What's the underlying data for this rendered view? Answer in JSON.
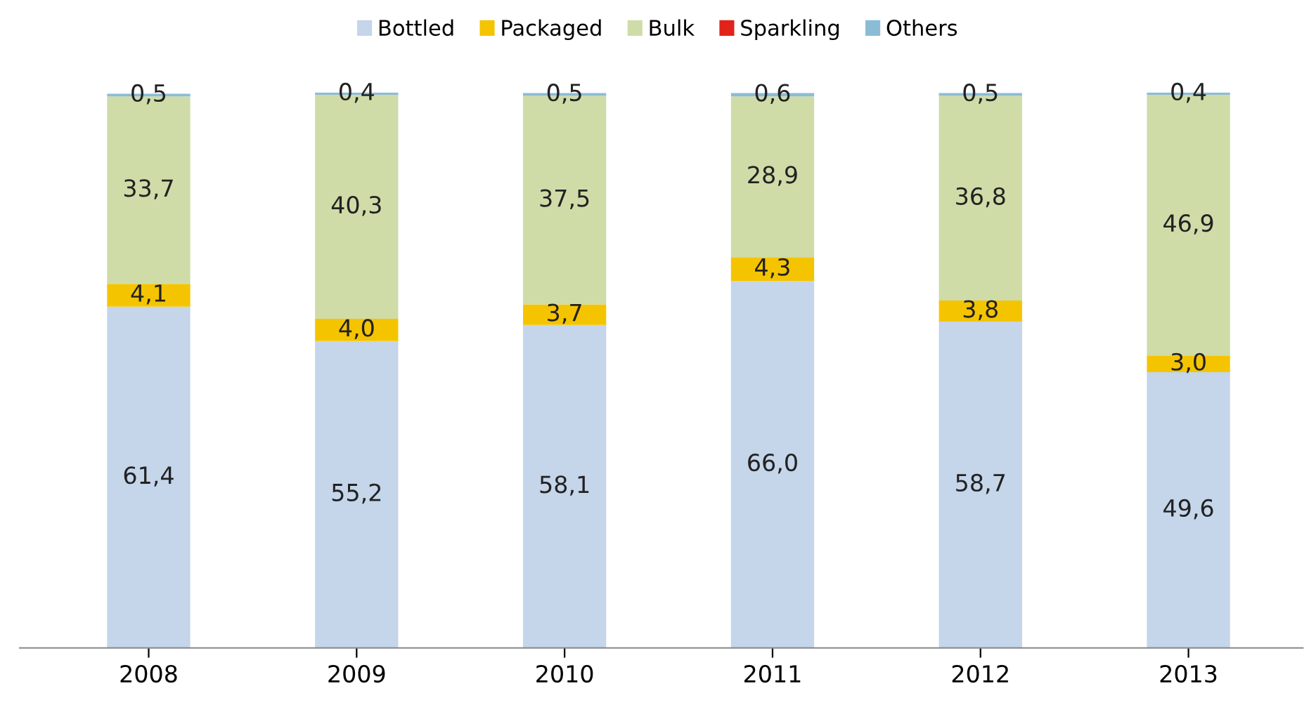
{
  "chart_data": {
    "type": "bar",
    "stacked": true,
    "legend": "top",
    "grid": false,
    "tick_labels": "x",
    "categories": [
      "2008",
      "2009",
      "2010",
      "2011",
      "2012",
      "2013"
    ],
    "series": [
      {
        "name": "Bottled",
        "color": "#c5d5ea",
        "values": [
          61.4,
          55.2,
          58.1,
          66.0,
          58.7,
          49.6
        ],
        "value_labels": [
          "61,4",
          "55,2",
          "58,1",
          "66,0",
          "58,7",
          "49,6"
        ]
      },
      {
        "name": "Packaged",
        "color": "#f5c400",
        "values": [
          4.1,
          4.0,
          3.7,
          4.3,
          3.8,
          3.0
        ],
        "value_labels": [
          "4,1",
          "4,0",
          "3,7",
          "4,3",
          "3,8",
          "3,0"
        ]
      },
      {
        "name": "Bulk",
        "color": "#cfdca8",
        "values": [
          33.7,
          40.3,
          37.5,
          28.9,
          36.8,
          46.9
        ],
        "value_labels": [
          "33,7",
          "40,3",
          "37,5",
          "28,9",
          "36,8",
          "46,9"
        ]
      },
      {
        "name": "Sparkling",
        "color": "#e2231a",
        "values": [
          null,
          null,
          null,
          null,
          null,
          null
        ]
      },
      {
        "name": "Others",
        "color": "#8bbcd6",
        "values": [
          0.5,
          0.4,
          0.5,
          0.6,
          0.5,
          0.4
        ],
        "value_labels": [
          "0,5",
          "0,4",
          "0,5",
          "0,6",
          "0,5",
          "0,4"
        ]
      }
    ]
  }
}
